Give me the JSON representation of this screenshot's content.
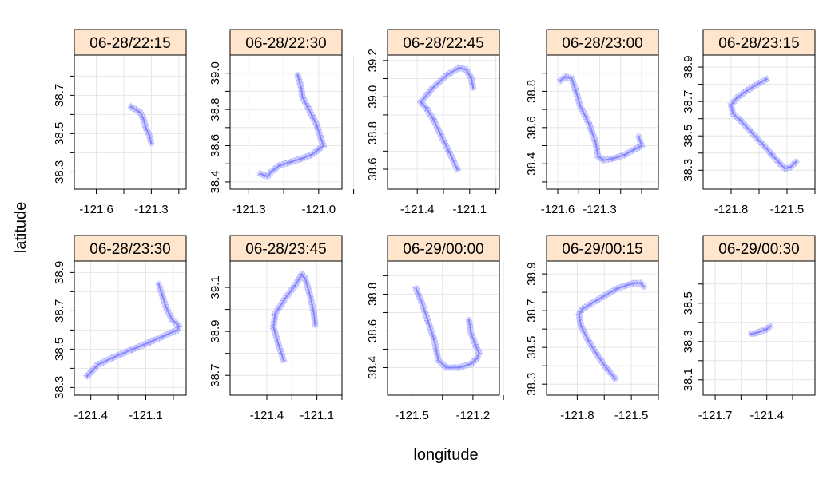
{
  "chart_data": {
    "type": "line",
    "xlabel": "longitude",
    "ylabel": "latitude",
    "panel_style": {
      "strip_color": "#FFE5CC",
      "grid_color": "#E6E6E6",
      "track_color": "#8080FF"
    },
    "panels": [
      {
        "strip": "06-28/22:15",
        "xlim": [
          -121.72,
          -121.11
        ],
        "ylim": [
          38.21,
          38.91
        ],
        "xticks": [
          -121.6,
          -121.45,
          -121.3,
          -121.15
        ],
        "xtick_labels": [
          "-121.6",
          "",
          "-121.3",
          ""
        ],
        "yticks": [
          38.3,
          38.4,
          38.5,
          38.6,
          38.7,
          38.8
        ],
        "ytick_labels": [
          "38.3",
          "",
          "38.5",
          "",
          "38.7",
          ""
        ],
        "x": [
          -121.41,
          -121.36,
          -121.34,
          -121.33,
          -121.31,
          -121.3
        ],
        "y": [
          38.64,
          38.61,
          38.57,
          38.53,
          38.49,
          38.45
        ]
      },
      {
        "strip": "06-28/22:30",
        "xlim": [
          -121.38,
          -120.9
        ],
        "ylim": [
          38.36,
          39.1
        ],
        "xticks": [
          -121.3,
          -121.15,
          -121.0,
          -120.85
        ],
        "xtick_labels": [
          "-121.3",
          "",
          "-121.0",
          ""
        ],
        "yticks": [
          38.4,
          38.5,
          38.6,
          38.7,
          38.8,
          38.9,
          39.0
        ],
        "ytick_labels": [
          "38.4",
          "",
          "38.6",
          "",
          "38.8",
          "",
          "39.0"
        ],
        "x": [
          -121.25,
          -121.22,
          -121.2,
          -121.17,
          -121.12,
          -121.07,
          -121.03,
          -121.0,
          -120.98,
          -120.995,
          -121.01,
          -121.03,
          -121.05,
          -121.07,
          -121.075,
          -121.09
        ],
        "y": [
          38.445,
          38.43,
          38.46,
          38.49,
          38.51,
          38.53,
          38.55,
          38.58,
          38.6,
          38.66,
          38.72,
          38.77,
          38.82,
          38.87,
          38.92,
          38.99
        ]
      },
      {
        "strip": "06-28/22:45",
        "xlim": [
          -121.57,
          -120.93
        ],
        "ylim": [
          38.49,
          39.23
        ],
        "xticks": [
          -121.4,
          -121.25,
          -121.1,
          -120.95
        ],
        "xtick_labels": [
          "-121.4",
          "",
          "-121.1",
          ""
        ],
        "yticks": [
          38.6,
          38.7,
          38.8,
          38.9,
          39.0,
          39.1,
          39.2
        ],
        "ytick_labels": [
          "38.6",
          "",
          "38.8",
          "",
          "39.0",
          "",
          "39.2"
        ],
        "x": [
          -121.17,
          -121.22,
          -121.27,
          -121.31,
          -121.35,
          -121.38,
          -121.31,
          -121.23,
          -121.16,
          -121.12,
          -121.09,
          -121.08
        ],
        "y": [
          38.6,
          38.7,
          38.8,
          38.88,
          38.94,
          38.97,
          39.05,
          39.12,
          39.16,
          39.15,
          39.1,
          39.05
        ]
      },
      {
        "strip": "06-28/23:00",
        "xlim": [
          -121.68,
          -120.88
        ],
        "ylim": [
          38.26,
          39.0
        ],
        "xticks": [
          -121.6,
          -121.45,
          -121.3,
          -121.15,
          -121.0
        ],
        "xtick_labels": [
          "-121.6",
          "",
          "-121.3",
          "",
          ""
        ],
        "yticks": [
          38.3,
          38.4,
          38.5,
          38.6,
          38.7,
          38.8,
          38.9
        ],
        "ytick_labels": [
          "",
          "38.4",
          "",
          "38.6",
          "",
          "38.8",
          ""
        ],
        "x": [
          -121.58,
          -121.54,
          -121.5,
          -121.47,
          -121.44,
          -121.4,
          -121.37,
          -121.33,
          -121.31,
          -121.27,
          -121.2,
          -121.12,
          -121.05,
          -121.0,
          -121.02
        ],
        "y": [
          38.86,
          38.88,
          38.87,
          38.8,
          38.72,
          38.66,
          38.61,
          38.52,
          38.44,
          38.42,
          38.43,
          38.45,
          38.48,
          38.5,
          38.55
        ]
      },
      {
        "strip": "06-28/23:15",
        "xlim": [
          -121.95,
          -121.35
        ],
        "ylim": [
          38.19,
          38.97
        ],
        "xticks": [
          -121.8,
          -121.65,
          -121.5,
          -121.35
        ],
        "xtick_labels": [
          "-121.8",
          "",
          "-121.5",
          ""
        ],
        "yticks": [
          38.3,
          38.4,
          38.5,
          38.6,
          38.7,
          38.8,
          38.9
        ],
        "ytick_labels": [
          "38.3",
          "",
          "38.5",
          "",
          "38.7",
          "",
          "38.9"
        ],
        "x": [
          -121.61,
          -121.66,
          -121.72,
          -121.77,
          -121.8,
          -121.79,
          -121.75,
          -121.69,
          -121.63,
          -121.58,
          -121.54,
          -121.51,
          -121.48,
          -121.45
        ],
        "y": [
          38.83,
          38.8,
          38.76,
          38.72,
          38.68,
          38.63,
          38.59,
          38.52,
          38.45,
          38.39,
          38.34,
          38.31,
          38.32,
          38.35
        ]
      },
      {
        "strip": "06-28/23:30",
        "xlim": [
          -121.49,
          -120.88
        ],
        "ylim": [
          38.26,
          38.96
        ],
        "xticks": [
          -121.4,
          -121.25,
          -121.1,
          -120.95
        ],
        "xtick_labels": [
          "-121.4",
          "",
          "-121.1",
          ""
        ],
        "yticks": [
          38.3,
          38.4,
          38.5,
          38.6,
          38.7,
          38.8,
          38.9
        ],
        "ytick_labels": [
          "38.3",
          "",
          "38.5",
          "",
          "38.7",
          "",
          "38.9"
        ],
        "x": [
          -121.42,
          -121.36,
          -121.27,
          -121.17,
          -121.07,
          -121.0,
          -120.93,
          -120.92,
          -120.96,
          -120.99,
          -121.01,
          -121.03
        ],
        "y": [
          38.36,
          38.42,
          38.46,
          38.5,
          38.54,
          38.57,
          38.6,
          38.62,
          38.66,
          38.72,
          38.78,
          38.84
        ]
      },
      {
        "strip": "06-28/23:45",
        "xlim": [
          -121.62,
          -120.95
        ],
        "ylim": [
          38.61,
          39.22
        ],
        "xticks": [
          -121.4,
          -121.25,
          -121.1,
          -120.95
        ],
        "xtick_labels": [
          "-121.4",
          "",
          "-121.1",
          ""
        ],
        "yticks": [
          38.7,
          38.8,
          38.9,
          39.0,
          39.1
        ],
        "ytick_labels": [
          "38.7",
          "",
          "38.9",
          "",
          "39.1"
        ],
        "x": [
          -121.3,
          -121.33,
          -121.36,
          -121.35,
          -121.29,
          -121.23,
          -121.19,
          -121.17,
          -121.14,
          -121.12,
          -121.11
        ],
        "y": [
          38.77,
          38.84,
          38.92,
          38.98,
          39.05,
          39.11,
          39.16,
          39.14,
          39.06,
          38.99,
          38.93
        ]
      },
      {
        "strip": "06-29/00:00",
        "xlim": [
          -121.62,
          -121.07
        ],
        "ylim": [
          38.25,
          38.98
        ],
        "xticks": [
          -121.5,
          -121.35,
          -121.2,
          -121.05
        ],
        "xtick_labels": [
          "-121.5",
          "",
          "-121.2",
          ""
        ],
        "yticks": [
          38.3,
          38.4,
          38.5,
          38.6,
          38.7,
          38.8,
          38.9
        ],
        "ytick_labels": [
          "",
          "38.4",
          "",
          "38.6",
          "",
          "38.8",
          ""
        ],
        "x": [
          -121.48,
          -121.45,
          -121.42,
          -121.39,
          -121.37,
          -121.33,
          -121.27,
          -121.21,
          -121.18,
          -121.17,
          -121.19,
          -121.21,
          -121.22
        ],
        "y": [
          38.83,
          38.75,
          38.65,
          38.55,
          38.44,
          38.4,
          38.4,
          38.42,
          38.45,
          38.48,
          38.53,
          38.59,
          38.66
        ]
      },
      {
        "strip": "06-29/00:15",
        "xlim": [
          -121.97,
          -121.35
        ],
        "ylim": [
          38.24,
          38.97
        ],
        "xticks": [
          -121.8,
          -121.65,
          -121.5,
          -121.35
        ],
        "xtick_labels": [
          "-121.8",
          "",
          "-121.5",
          ""
        ],
        "yticks": [
          38.3,
          38.4,
          38.5,
          38.6,
          38.7,
          38.8,
          38.9
        ],
        "ytick_labels": [
          "38.3",
          "",
          "38.5",
          "",
          "38.7",
          "",
          "38.9"
        ],
        "x": [
          -121.59,
          -121.64,
          -121.69,
          -121.74,
          -121.78,
          -121.79,
          -121.77,
          -121.72,
          -121.65,
          -121.58,
          -121.52,
          -121.48,
          -121.45,
          -121.43
        ],
        "y": [
          38.33,
          38.39,
          38.46,
          38.54,
          38.62,
          38.68,
          38.71,
          38.74,
          38.78,
          38.82,
          38.84,
          38.85,
          38.85,
          38.83
        ]
      },
      {
        "strip": "06-29/00:30",
        "xlim": [
          -121.77,
          -121.12
        ],
        "ylim": [
          38.02,
          38.72
        ],
        "xticks": [
          -121.7,
          -121.55,
          -121.4,
          -121.25
        ],
        "xtick_labels": [
          "-121.7",
          "",
          "-121.4",
          ""
        ],
        "yticks": [
          38.1,
          38.2,
          38.3,
          38.4,
          38.5,
          38.6
        ],
        "ytick_labels": [
          "38.1",
          "",
          "38.3",
          "",
          "38.5",
          ""
        ],
        "x": [
          -121.49,
          -121.46,
          -121.43,
          -121.4,
          -121.38
        ],
        "y": [
          38.34,
          38.345,
          38.355,
          38.365,
          38.38
        ]
      }
    ]
  }
}
